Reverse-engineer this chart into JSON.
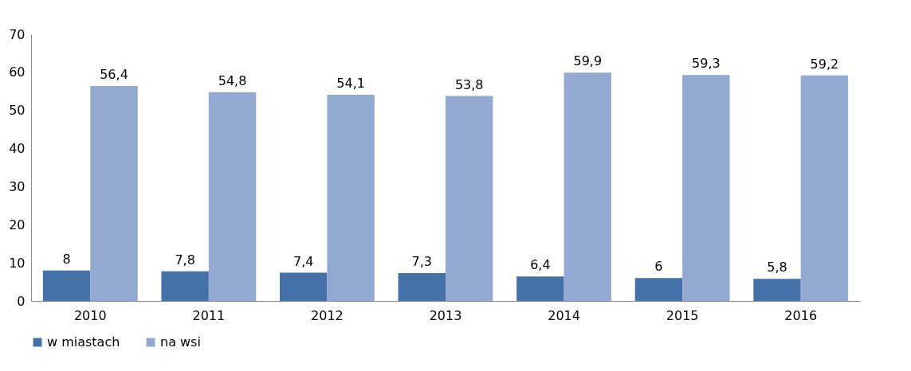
{
  "chart_data": {
    "type": "bar",
    "categories": [
      "2010",
      "2011",
      "2012",
      "2013",
      "2014",
      "2015",
      "2016"
    ],
    "series": [
      {
        "name": "w miastach",
        "color": "#4472a8",
        "values": [
          8,
          7.8,
          7.4,
          7.3,
          6.4,
          6,
          5.8
        ],
        "value_labels": [
          "8",
          "7,8",
          "7,4",
          "7,3",
          "6,4",
          "6",
          "5,8"
        ]
      },
      {
        "name": "na wsi",
        "color": "#93a9d1",
        "values": [
          56.4,
          54.8,
          54.1,
          53.8,
          59.9,
          59.3,
          59.2
        ],
        "value_labels": [
          "56,4",
          "54,8",
          "54,1",
          "53,8",
          "59,9",
          "59,3",
          "59,2"
        ]
      }
    ],
    "ylim": [
      0,
      70
    ],
    "yticks": [
      0,
      10,
      20,
      30,
      40,
      50,
      60,
      70
    ],
    "legend": "bottom",
    "grid": false
  }
}
